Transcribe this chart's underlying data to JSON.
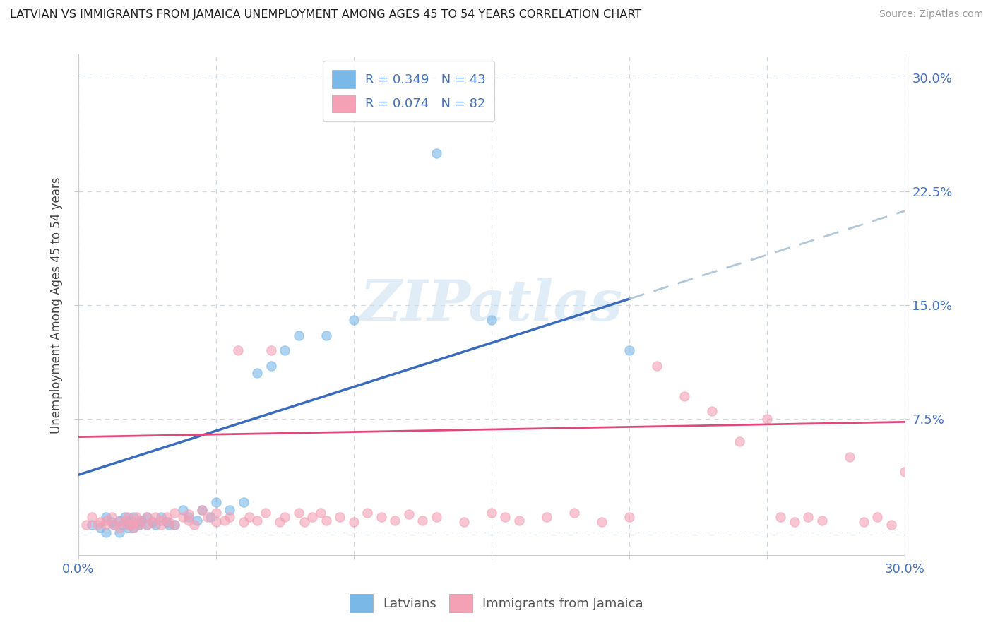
{
  "title": "LATVIAN VS IMMIGRANTS FROM JAMAICA UNEMPLOYMENT AMONG AGES 45 TO 54 YEARS CORRELATION CHART",
  "source": "Source: ZipAtlas.com",
  "ylabel": "Unemployment Among Ages 45 to 54 years",
  "xlim": [
    0.0,
    0.3
  ],
  "ylim": [
    -0.015,
    0.315
  ],
  "xtick_positions": [
    0.0,
    0.05,
    0.1,
    0.15,
    0.2,
    0.25,
    0.3
  ],
  "xtick_labels": [
    "0.0%",
    "",
    "",
    "",
    "",
    "",
    "30.0%"
  ],
  "ytick_positions": [
    0.0,
    0.075,
    0.15,
    0.225,
    0.3
  ],
  "ytick_labels": [
    "",
    "7.5%",
    "15.0%",
    "22.5%",
    "30.0%"
  ],
  "latvian_color": "#7ab8e8",
  "jamaican_color": "#f4a0b5",
  "latvian_line_color": "#3a6bbf",
  "jamaican_line_color": "#e0497a",
  "dash_color": "#b0c8d8",
  "background_color": "#ffffff",
  "grid_color": "#d0d8e0",
  "title_color": "#222222",
  "axis_label_color": "#444444",
  "tick_label_color": "#4472c4",
  "watermark_color": "#c8dff0",
  "latvian_R": 0.349,
  "latvian_N": 43,
  "jamaican_R": 0.074,
  "jamaican_N": 82,
  "lat_x": [
    0.005,
    0.008,
    0.01,
    0.01,
    0.012,
    0.013,
    0.015,
    0.015,
    0.016,
    0.017,
    0.018,
    0.018,
    0.019,
    0.02,
    0.02,
    0.022,
    0.022,
    0.023,
    0.025,
    0.025,
    0.027,
    0.028,
    0.03,
    0.032,
    0.033,
    0.035,
    0.038,
    0.04,
    0.043,
    0.045,
    0.048,
    0.05,
    0.055,
    0.06,
    0.065,
    0.07,
    0.075,
    0.08,
    0.09,
    0.1,
    0.13,
    0.15,
    0.2
  ],
  "lat_y": [
    0.005,
    0.003,
    0.01,
    0.0,
    0.007,
    0.005,
    0.008,
    0.0,
    0.005,
    0.01,
    0.003,
    0.007,
    0.005,
    0.003,
    0.01,
    0.007,
    0.005,
    0.008,
    0.005,
    0.01,
    0.007,
    0.005,
    0.01,
    0.007,
    0.005,
    0.005,
    0.015,
    0.01,
    0.008,
    0.015,
    0.01,
    0.02,
    0.015,
    0.02,
    0.105,
    0.11,
    0.12,
    0.13,
    0.13,
    0.14,
    0.25,
    0.14,
    0.12
  ],
  "jam_x": [
    0.003,
    0.005,
    0.007,
    0.008,
    0.01,
    0.01,
    0.012,
    0.013,
    0.015,
    0.015,
    0.017,
    0.018,
    0.018,
    0.019,
    0.02,
    0.02,
    0.021,
    0.022,
    0.022,
    0.025,
    0.025,
    0.027,
    0.028,
    0.03,
    0.03,
    0.032,
    0.033,
    0.035,
    0.035,
    0.038,
    0.04,
    0.04,
    0.042,
    0.045,
    0.047,
    0.05,
    0.05,
    0.053,
    0.055,
    0.058,
    0.06,
    0.062,
    0.065,
    0.068,
    0.07,
    0.073,
    0.075,
    0.08,
    0.082,
    0.085,
    0.088,
    0.09,
    0.095,
    0.1,
    0.105,
    0.11,
    0.115,
    0.12,
    0.125,
    0.13,
    0.14,
    0.15,
    0.155,
    0.16,
    0.17,
    0.18,
    0.19,
    0.2,
    0.21,
    0.22,
    0.23,
    0.24,
    0.25,
    0.255,
    0.26,
    0.265,
    0.27,
    0.28,
    0.285,
    0.29,
    0.295,
    0.3
  ],
  "jam_y": [
    0.005,
    0.01,
    0.005,
    0.007,
    0.005,
    0.008,
    0.01,
    0.005,
    0.007,
    0.003,
    0.008,
    0.005,
    0.01,
    0.005,
    0.007,
    0.003,
    0.01,
    0.005,
    0.008,
    0.01,
    0.005,
    0.007,
    0.01,
    0.005,
    0.008,
    0.01,
    0.007,
    0.013,
    0.005,
    0.01,
    0.008,
    0.012,
    0.005,
    0.015,
    0.01,
    0.007,
    0.013,
    0.008,
    0.01,
    0.12,
    0.007,
    0.01,
    0.008,
    0.013,
    0.12,
    0.007,
    0.01,
    0.013,
    0.007,
    0.01,
    0.013,
    0.008,
    0.01,
    0.007,
    0.013,
    0.01,
    0.008,
    0.012,
    0.008,
    0.01,
    0.007,
    0.013,
    0.01,
    0.008,
    0.01,
    0.013,
    0.007,
    0.01,
    0.11,
    0.09,
    0.08,
    0.06,
    0.075,
    0.01,
    0.007,
    0.01,
    0.008,
    0.05,
    0.007,
    0.01,
    0.005,
    0.04
  ]
}
